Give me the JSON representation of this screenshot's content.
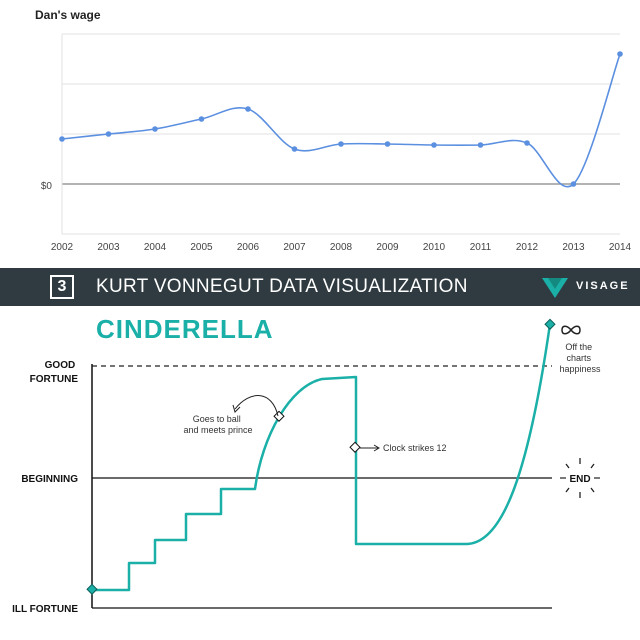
{
  "chart_data": [
    {
      "type": "line",
      "title": "Dan's wage",
      "y_label_text": "$0",
      "x": [
        "2002",
        "2003",
        "2004",
        "2005",
        "2006",
        "2007",
        "2008",
        "2009",
        "2010",
        "2011",
        "2012",
        "2013",
        "2014"
      ],
      "series": [
        {
          "values": [
            0.45,
            0.5,
            0.55,
            0.65,
            0.75,
            0.35,
            0.4,
            0.4,
            0.39,
            0.39,
            0.41,
            0.0,
            1.3
          ]
        }
      ],
      "ylim": [
        -0.5,
        1.5
      ],
      "grid": true,
      "color": "#5b8fe0"
    },
    {
      "type": "line",
      "title": "CINDERELLA",
      "y_levels": [
        "GOOD FORTUNE",
        "BEGINNING",
        "ILL FORTUNE"
      ],
      "annotations": [
        "Goes to ball and meets prince",
        "Clock strikes 12",
        "Off the charts happiness",
        "END"
      ],
      "ylim": [
        -1,
        1
      ],
      "color": "#1ab0a8"
    }
  ],
  "banner": {
    "number": "3",
    "title": "KURT VONNEGUT DATA VISUALIZATION",
    "brand": "VISAGE"
  }
}
